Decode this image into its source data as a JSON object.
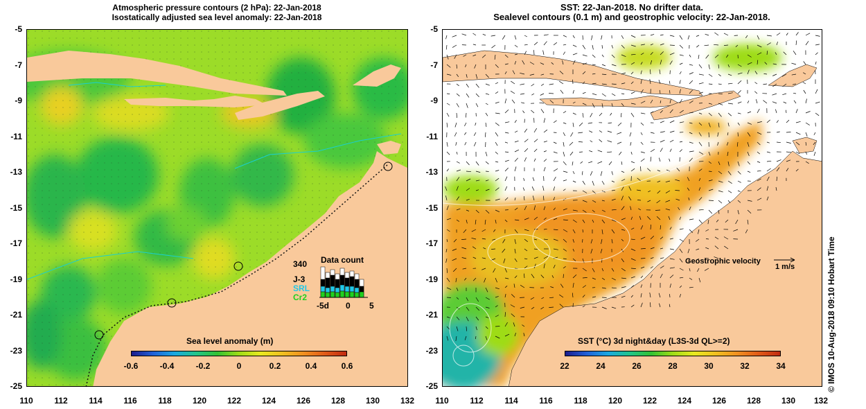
{
  "left_panel": {
    "title_line1": "Atmospheric pressure contours (2 hPa): 22-Jan-2018",
    "title_line2": "Isostatically adjusted sea level anomaly: 22-Jan-2018",
    "colorbar_title": "Sea level anomaly (m)",
    "colorbar_ticks": [
      "-0.6",
      "-0.4",
      "-0.2",
      "0",
      "0.2",
      "0.4",
      "0.6"
    ],
    "colorbar_colors": [
      "#1c1c8c",
      "#2060d8",
      "#1aa8e0",
      "#21c48a",
      "#33c133",
      "#9edc16",
      "#e8e820",
      "#f0c020",
      "#f09020",
      "#e05a18",
      "#c02a10"
    ],
    "data_count": {
      "title": "Data count",
      "max": "340",
      "satellites": [
        "J-3",
        "SRL",
        "Cr2"
      ],
      "satellite_colors": [
        "#000000",
        "#20c8e8",
        "#20d020"
      ],
      "x_ticks": [
        "-5d",
        "0",
        "5"
      ]
    }
  },
  "right_panel": {
    "title_line1": "SST: 22-Jan-2018. No drifter data.",
    "title_line2": "Sealevel contours (0.1 m) and geostrophic velocity: 22-Jan-2018.",
    "colorbar_title": "SST (°C) 3d night&day (L3S-3d QL>=2)",
    "colorbar_ticks": [
      "22",
      "24",
      "26",
      "28",
      "30",
      "32",
      "34"
    ],
    "colorbar_colors": [
      "#1c1c8c",
      "#2060d8",
      "#1aa8e0",
      "#21c48a",
      "#33c133",
      "#9edc16",
      "#e8e820",
      "#f0c020",
      "#f09020",
      "#e05a18",
      "#c02a10"
    ],
    "velocity_label": "Geostrophic velocity",
    "velocity_scale": "1 m/s"
  },
  "axes": {
    "y_ticks": [
      "-5",
      "-7",
      "-9",
      "-11",
      "-13",
      "-15",
      "-17",
      "-19",
      "-21",
      "-23",
      "-25"
    ],
    "x_ticks": [
      "110",
      "112",
      "114",
      "116",
      "118",
      "120",
      "122",
      "124",
      "126",
      "128",
      "130",
      "132"
    ]
  },
  "footer": {
    "imos_credit": "© IMOS 10-Aug-2018 09:10 Hobart Time"
  },
  "colors": {
    "land": "#f9c99b",
    "sla_base": "#9cdc28",
    "sst_warm": "#f0a020",
    "sst_cool": "#22b4a8"
  }
}
